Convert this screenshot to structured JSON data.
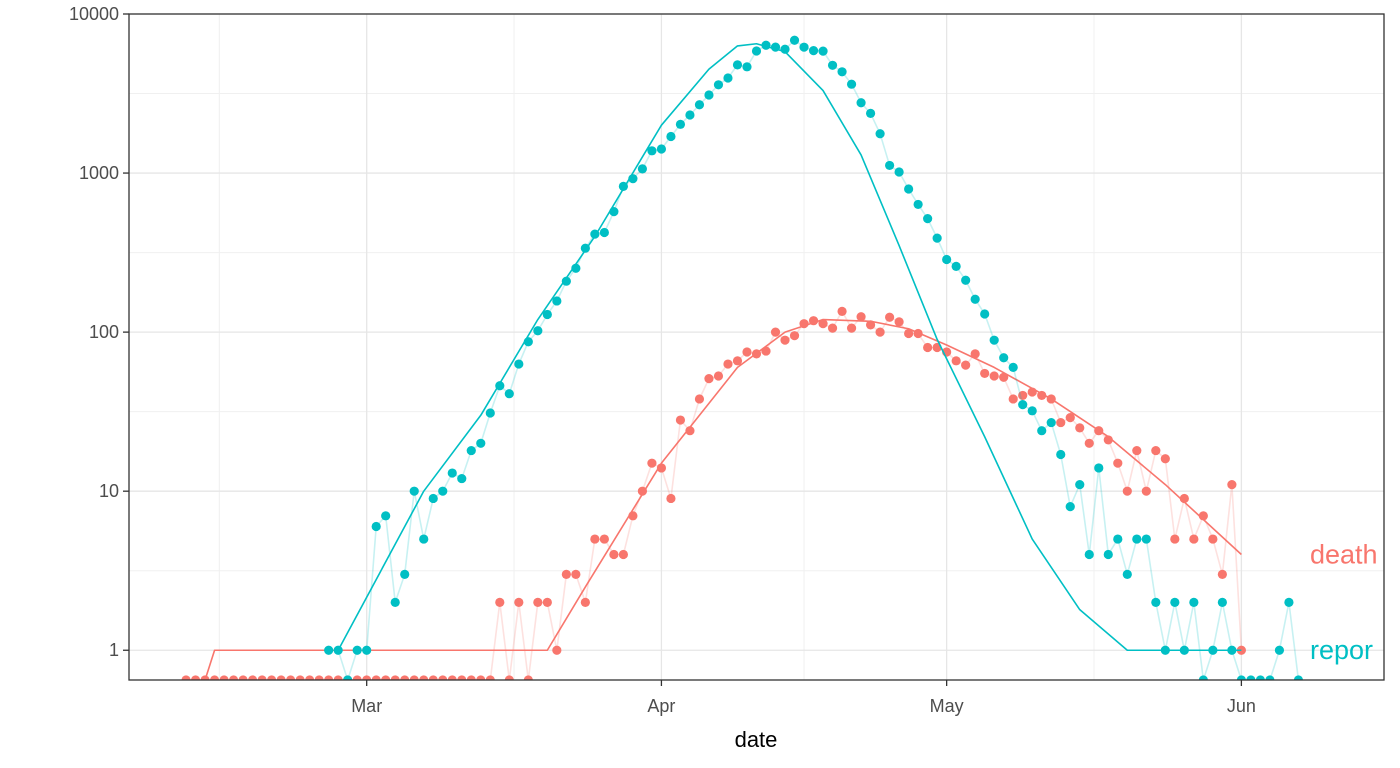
{
  "chart_data": {
    "type": "line",
    "title": "",
    "xlabel": "date",
    "ylabel": "",
    "y_scale": "log10",
    "ylim": [
      0.65,
      10000
    ],
    "xlim": [
      "2020-02-05",
      "2020-06-16"
    ],
    "grid": true,
    "x_ticks": [
      {
        "date": "2020-03-01",
        "label": "Mar"
      },
      {
        "date": "2020-04-01",
        "label": "Apr"
      },
      {
        "date": "2020-05-01",
        "label": "May"
      },
      {
        "date": "2020-06-01",
        "label": "Jun"
      }
    ],
    "y_ticks": [
      {
        "value": 1,
        "label": "1"
      },
      {
        "value": 10,
        "label": "10"
      },
      {
        "value": 100,
        "label": "100"
      },
      {
        "value": 1000,
        "label": "1000"
      },
      {
        "value": 10000,
        "label": "10000"
      }
    ],
    "series": [
      {
        "name": "death",
        "color": "#F8766D",
        "start_date": "2020-02-11",
        "values": [
          0,
          0,
          0,
          0,
          0,
          0,
          0,
          0,
          0,
          0,
          0,
          0,
          0,
          0,
          0,
          0,
          0,
          0,
          0,
          0,
          0,
          0,
          0,
          0,
          0,
          0,
          0,
          0,
          0,
          0,
          0,
          0,
          0,
          2,
          0,
          2,
          0,
          2,
          2,
          1,
          3,
          3,
          2,
          5,
          5,
          4,
          4,
          7,
          10,
          15,
          14,
          9,
          28,
          24,
          38,
          51,
          53,
          63,
          66,
          75,
          73,
          76,
          100,
          89,
          95,
          113,
          118,
          113,
          106,
          135,
          106,
          125,
          111,
          100,
          124,
          116,
          98,
          98,
          80,
          80,
          75,
          66,
          62,
          73,
          55,
          53,
          52,
          38,
          40,
          42,
          40,
          38,
          27,
          29,
          25,
          20,
          24,
          21,
          15,
          10,
          18,
          10,
          18,
          16,
          5,
          9,
          5,
          7,
          5,
          3,
          11,
          1
        ],
        "fit_points": [
          {
            "date": "2020-02-13",
            "value": 0.65
          },
          {
            "date": "2020-02-14",
            "value": 1
          },
          {
            "date": "2020-03-20",
            "value": 1
          },
          {
            "date": "2020-03-24",
            "value": 2.5
          },
          {
            "date": "2020-04-01",
            "value": 15
          },
          {
            "date": "2020-04-09",
            "value": 60
          },
          {
            "date": "2020-04-14",
            "value": 100
          },
          {
            "date": "2020-04-18",
            "value": 120
          },
          {
            "date": "2020-04-23",
            "value": 117
          },
          {
            "date": "2020-04-27",
            "value": 105
          },
          {
            "date": "2020-05-01",
            "value": 83
          },
          {
            "date": "2020-05-06",
            "value": 60
          },
          {
            "date": "2020-05-12",
            "value": 38
          },
          {
            "date": "2020-05-18",
            "value": 22
          },
          {
            "date": "2020-05-24",
            "value": 11
          },
          {
            "date": "2020-06-01",
            "value": 4
          }
        ]
      },
      {
        "name": "repor",
        "color": "#00BFC4",
        "start_date": "2020-02-26",
        "values": [
          1,
          1,
          0,
          1,
          1,
          6,
          7,
          2,
          3,
          10,
          5,
          9,
          10,
          13,
          12,
          18,
          20,
          31,
          46,
          41,
          63,
          87,
          102,
          129,
          157,
          209,
          252,
          337,
          413,
          423,
          572,
          825,
          922,
          1062,
          1380,
          1417,
          1697,
          2025,
          2317,
          2688,
          3096,
          3588,
          3960,
          4787,
          4655,
          5851,
          6360,
          6194,
          6004,
          6836,
          6186,
          5887,
          5842,
          4758,
          4331,
          3620,
          2766,
          2372,
          1766,
          1117,
          1015,
          794,
          635,
          517,
          390,
          286,
          259,
          212,
          161,
          130,
          89,
          69,
          60,
          35,
          32,
          24,
          27,
          17,
          8,
          11,
          4,
          14,
          4,
          5,
          3,
          5,
          5,
          2,
          1,
          2,
          1,
          2,
          0,
          1,
          2,
          1,
          0,
          0,
          0,
          0,
          1,
          2,
          0
        ],
        "fit_points": [
          {
            "date": "2020-02-27",
            "value": 1
          },
          {
            "date": "2020-03-07",
            "value": 10
          },
          {
            "date": "2020-03-13",
            "value": 30
          },
          {
            "date": "2020-03-19",
            "value": 120
          },
          {
            "date": "2020-03-25",
            "value": 400
          },
          {
            "date": "2020-04-01",
            "value": 2000
          },
          {
            "date": "2020-04-06",
            "value": 4500
          },
          {
            "date": "2020-04-09",
            "value": 6300
          },
          {
            "date": "2020-04-11",
            "value": 6500
          },
          {
            "date": "2020-04-14",
            "value": 5800
          },
          {
            "date": "2020-04-18",
            "value": 3300
          },
          {
            "date": "2020-04-22",
            "value": 1300
          },
          {
            "date": "2020-04-26",
            "value": 350
          },
          {
            "date": "2020-04-30",
            "value": 90
          },
          {
            "date": "2020-05-05",
            "value": 22
          },
          {
            "date": "2020-05-10",
            "value": 5
          },
          {
            "date": "2020-05-15",
            "value": 1.8
          },
          {
            "date": "2020-05-20",
            "value": 1
          },
          {
            "date": "2020-06-01",
            "value": 1
          }
        ]
      }
    ]
  }
}
